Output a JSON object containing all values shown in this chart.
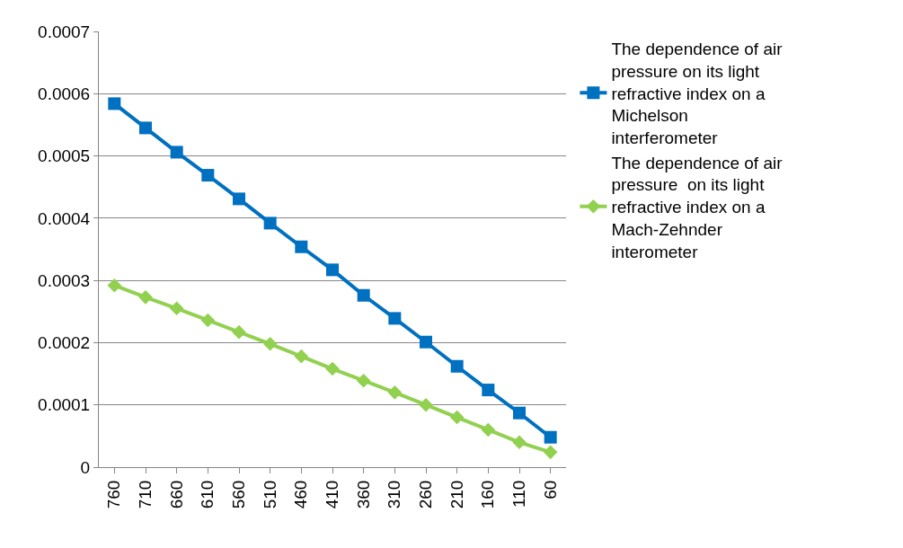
{
  "chart_data": {
    "type": "line",
    "categories": [
      "760",
      "710",
      "660",
      "610",
      "560",
      "510",
      "460",
      "410",
      "360",
      "310",
      "260",
      "210",
      "160",
      "110",
      "60"
    ],
    "series": [
      {
        "name": "The dependence of air pressure on its light refractive index on a Michelson interferometer",
        "color": "#0070c0",
        "marker": "square",
        "values": [
          0.000584,
          0.000545,
          0.000506,
          0.000469,
          0.000431,
          0.000392,
          0.000354,
          0.000317,
          0.000276,
          0.000239,
          0.000201,
          0.000162,
          0.000124,
          8.7e-05,
          4.8e-05
        ]
      },
      {
        "name": "The dependence of air pressure  on its light refractive index on a Mach-Zehnder interometer",
        "color": "#92d050",
        "marker": "diamond",
        "values": [
          0.000292,
          0.000273,
          0.000255,
          0.000236,
          0.000217,
          0.000198,
          0.000178,
          0.000158,
          0.000139,
          0.00012,
          0.0001,
          8e-05,
          6e-05,
          4e-05,
          2.4e-05
        ]
      }
    ],
    "ylim": [
      0,
      0.0007
    ],
    "yticks": [
      0,
      0.0001,
      0.0002,
      0.0003,
      0.0004,
      0.0005,
      0.0006,
      0.0007
    ],
    "grid": "y",
    "legend": "right"
  }
}
